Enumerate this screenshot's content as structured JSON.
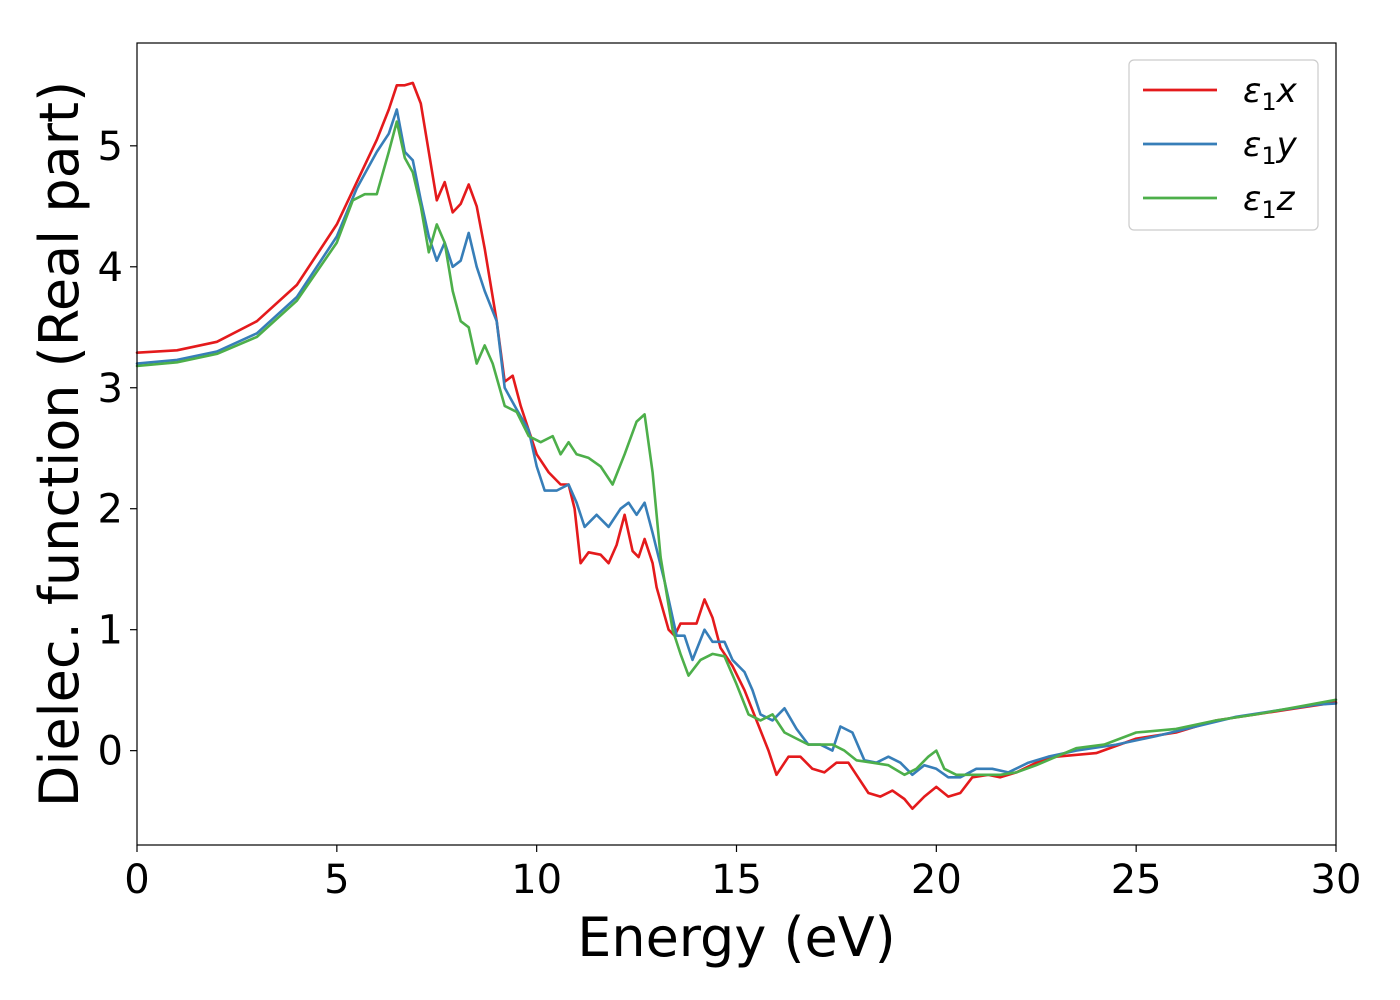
{
  "chart_data": {
    "type": "line",
    "xlabel": "Energy (eV)",
    "ylabel": "Dielec. function (Real part)",
    "xlim": [
      0,
      30
    ],
    "ylim": [
      -0.78,
      5.85
    ],
    "xticks": [
      0,
      5,
      10,
      15,
      20,
      25,
      30
    ],
    "yticks": [
      0,
      1,
      2,
      3,
      4,
      5
    ],
    "grid": false,
    "legend_position": "top-right",
    "series": [
      {
        "name": "ε1x",
        "legend": {
          "base": "ε",
          "sub": "1",
          "var": "x"
        },
        "color": "#e41a1c",
        "points": [
          [
            0,
            3.29
          ],
          [
            1,
            3.31
          ],
          [
            2,
            3.38
          ],
          [
            3,
            3.55
          ],
          [
            4,
            3.85
          ],
          [
            5,
            4.35
          ],
          [
            5.5,
            4.7
          ],
          [
            6,
            5.05
          ],
          [
            6.3,
            5.3
          ],
          [
            6.5,
            5.5
          ],
          [
            6.7,
            5.5
          ],
          [
            6.9,
            5.52
          ],
          [
            7.1,
            5.35
          ],
          [
            7.3,
            4.95
          ],
          [
            7.5,
            4.55
          ],
          [
            7.7,
            4.7
          ],
          [
            7.9,
            4.45
          ],
          [
            8.1,
            4.52
          ],
          [
            8.3,
            4.68
          ],
          [
            8.5,
            4.5
          ],
          [
            8.7,
            4.15
          ],
          [
            9,
            3.55
          ],
          [
            9.2,
            3.05
          ],
          [
            9.4,
            3.1
          ],
          [
            9.6,
            2.85
          ],
          [
            9.8,
            2.65
          ],
          [
            10,
            2.45
          ],
          [
            10.3,
            2.3
          ],
          [
            10.6,
            2.2
          ],
          [
            10.8,
            2.2
          ],
          [
            10.95,
            2.0
          ],
          [
            11.1,
            1.55
          ],
          [
            11.3,
            1.64
          ],
          [
            11.6,
            1.62
          ],
          [
            11.8,
            1.55
          ],
          [
            12.0,
            1.7
          ],
          [
            12.2,
            1.95
          ],
          [
            12.4,
            1.65
          ],
          [
            12.55,
            1.6
          ],
          [
            12.7,
            1.75
          ],
          [
            12.9,
            1.55
          ],
          [
            13.0,
            1.35
          ],
          [
            13.3,
            1.0
          ],
          [
            13.45,
            0.95
          ],
          [
            13.6,
            1.05
          ],
          [
            13.8,
            1.05
          ],
          [
            14.0,
            1.05
          ],
          [
            14.2,
            1.25
          ],
          [
            14.4,
            1.1
          ],
          [
            14.6,
            0.85
          ],
          [
            14.9,
            0.7
          ],
          [
            15.2,
            0.5
          ],
          [
            15.5,
            0.25
          ],
          [
            15.8,
            0.0
          ],
          [
            16.0,
            -0.2
          ],
          [
            16.3,
            -0.05
          ],
          [
            16.6,
            -0.05
          ],
          [
            16.9,
            -0.15
          ],
          [
            17.2,
            -0.18
          ],
          [
            17.5,
            -0.1
          ],
          [
            17.8,
            -0.1
          ],
          [
            18.0,
            -0.2
          ],
          [
            18.3,
            -0.35
          ],
          [
            18.6,
            -0.38
          ],
          [
            18.9,
            -0.33
          ],
          [
            19.2,
            -0.4
          ],
          [
            19.4,
            -0.48
          ],
          [
            19.7,
            -0.38
          ],
          [
            20.0,
            -0.3
          ],
          [
            20.3,
            -0.38
          ],
          [
            20.6,
            -0.35
          ],
          [
            20.9,
            -0.22
          ],
          [
            21.3,
            -0.2
          ],
          [
            21.6,
            -0.22
          ],
          [
            22.0,
            -0.18
          ],
          [
            22.5,
            -0.1
          ],
          [
            23,
            -0.05
          ],
          [
            24,
            -0.02
          ],
          [
            25,
            0.1
          ],
          [
            26,
            0.15
          ],
          [
            27,
            0.25
          ],
          [
            28,
            0.3
          ],
          [
            29,
            0.35
          ],
          [
            30,
            0.4
          ]
        ]
      },
      {
        "name": "ε1y",
        "legend": {
          "base": "ε",
          "sub": "1",
          "var": "y"
        },
        "color": "#377eb8",
        "points": [
          [
            0,
            3.2
          ],
          [
            1,
            3.23
          ],
          [
            2,
            3.3
          ],
          [
            3,
            3.45
          ],
          [
            4,
            3.75
          ],
          [
            5,
            4.25
          ],
          [
            5.5,
            4.65
          ],
          [
            6,
            4.95
          ],
          [
            6.3,
            5.1
          ],
          [
            6.5,
            5.3
          ],
          [
            6.7,
            4.95
          ],
          [
            6.9,
            4.88
          ],
          [
            7.1,
            4.55
          ],
          [
            7.3,
            4.25
          ],
          [
            7.5,
            4.05
          ],
          [
            7.7,
            4.2
          ],
          [
            7.9,
            4.0
          ],
          [
            8.1,
            4.05
          ],
          [
            8.3,
            4.28
          ],
          [
            8.5,
            4.0
          ],
          [
            8.7,
            3.8
          ],
          [
            9.0,
            3.55
          ],
          [
            9.2,
            3.0
          ],
          [
            9.5,
            2.82
          ],
          [
            9.8,
            2.65
          ],
          [
            10.0,
            2.35
          ],
          [
            10.2,
            2.15
          ],
          [
            10.5,
            2.15
          ],
          [
            10.8,
            2.2
          ],
          [
            11.0,
            2.05
          ],
          [
            11.2,
            1.85
          ],
          [
            11.5,
            1.95
          ],
          [
            11.8,
            1.85
          ],
          [
            12.1,
            2.0
          ],
          [
            12.3,
            2.05
          ],
          [
            12.5,
            1.95
          ],
          [
            12.7,
            2.05
          ],
          [
            12.9,
            1.8
          ],
          [
            13.2,
            1.4
          ],
          [
            13.5,
            0.95
          ],
          [
            13.7,
            0.95
          ],
          [
            13.9,
            0.75
          ],
          [
            14.2,
            1.0
          ],
          [
            14.4,
            0.9
          ],
          [
            14.7,
            0.9
          ],
          [
            14.9,
            0.75
          ],
          [
            15.2,
            0.65
          ],
          [
            15.4,
            0.5
          ],
          [
            15.6,
            0.3
          ],
          [
            15.9,
            0.25
          ],
          [
            16.2,
            0.35
          ],
          [
            16.5,
            0.18
          ],
          [
            16.8,
            0.05
          ],
          [
            17.1,
            0.05
          ],
          [
            17.4,
            0.0
          ],
          [
            17.6,
            0.2
          ],
          [
            17.9,
            0.15
          ],
          [
            18.2,
            -0.08
          ],
          [
            18.5,
            -0.1
          ],
          [
            18.8,
            -0.05
          ],
          [
            19.1,
            -0.1
          ],
          [
            19.4,
            -0.2
          ],
          [
            19.7,
            -0.12
          ],
          [
            20.0,
            -0.15
          ],
          [
            20.3,
            -0.22
          ],
          [
            20.6,
            -0.22
          ],
          [
            21.0,
            -0.15
          ],
          [
            21.4,
            -0.15
          ],
          [
            21.8,
            -0.18
          ],
          [
            22.3,
            -0.1
          ],
          [
            22.8,
            -0.05
          ],
          [
            23.5,
            0.0
          ],
          [
            24.5,
            0.05
          ],
          [
            25.5,
            0.12
          ],
          [
            26.5,
            0.2
          ],
          [
            27.5,
            0.28
          ],
          [
            28.5,
            0.33
          ],
          [
            29.5,
            0.38
          ],
          [
            30,
            0.39
          ]
        ]
      },
      {
        "name": "ε1z",
        "legend": {
          "base": "ε",
          "sub": "1",
          "var": "z"
        },
        "color": "#4daf4a",
        "points": [
          [
            0,
            3.18
          ],
          [
            1,
            3.21
          ],
          [
            2,
            3.28
          ],
          [
            3,
            3.42
          ],
          [
            4,
            3.72
          ],
          [
            5,
            4.2
          ],
          [
            5.4,
            4.55
          ],
          [
            5.7,
            4.6
          ],
          [
            6.0,
            4.6
          ],
          [
            6.3,
            4.95
          ],
          [
            6.5,
            5.2
          ],
          [
            6.7,
            4.9
          ],
          [
            6.9,
            4.78
          ],
          [
            7.1,
            4.5
          ],
          [
            7.3,
            4.12
          ],
          [
            7.5,
            4.35
          ],
          [
            7.7,
            4.2
          ],
          [
            7.9,
            3.8
          ],
          [
            8.1,
            3.55
          ],
          [
            8.3,
            3.5
          ],
          [
            8.5,
            3.2
          ],
          [
            8.7,
            3.35
          ],
          [
            8.9,
            3.2
          ],
          [
            9.2,
            2.85
          ],
          [
            9.5,
            2.8
          ],
          [
            9.8,
            2.6
          ],
          [
            10.1,
            2.55
          ],
          [
            10.4,
            2.6
          ],
          [
            10.6,
            2.45
          ],
          [
            10.8,
            2.55
          ],
          [
            11.0,
            2.45
          ],
          [
            11.3,
            2.42
          ],
          [
            11.6,
            2.35
          ],
          [
            11.9,
            2.2
          ],
          [
            12.2,
            2.45
          ],
          [
            12.5,
            2.72
          ],
          [
            12.7,
            2.78
          ],
          [
            12.9,
            2.3
          ],
          [
            13.1,
            1.6
          ],
          [
            13.4,
            1.0
          ],
          [
            13.6,
            0.8
          ],
          [
            13.8,
            0.62
          ],
          [
            14.1,
            0.75
          ],
          [
            14.4,
            0.8
          ],
          [
            14.7,
            0.78
          ],
          [
            15.0,
            0.55
          ],
          [
            15.3,
            0.3
          ],
          [
            15.6,
            0.25
          ],
          [
            15.9,
            0.3
          ],
          [
            16.2,
            0.15
          ],
          [
            16.5,
            0.1
          ],
          [
            16.8,
            0.05
          ],
          [
            17.1,
            0.05
          ],
          [
            17.4,
            0.05
          ],
          [
            17.7,
            0.0
          ],
          [
            18.0,
            -0.08
          ],
          [
            18.4,
            -0.1
          ],
          [
            18.8,
            -0.12
          ],
          [
            19.2,
            -0.2
          ],
          [
            19.5,
            -0.15
          ],
          [
            19.8,
            -0.05
          ],
          [
            20.0,
            0.0
          ],
          [
            20.2,
            -0.15
          ],
          [
            20.5,
            -0.2
          ],
          [
            20.8,
            -0.2
          ],
          [
            21.2,
            -0.2
          ],
          [
            21.6,
            -0.2
          ],
          [
            22.0,
            -0.18
          ],
          [
            22.5,
            -0.12
          ],
          [
            23.0,
            -0.05
          ],
          [
            23.5,
            0.02
          ],
          [
            24.2,
            0.05
          ],
          [
            25.0,
            0.15
          ],
          [
            26.0,
            0.18
          ],
          [
            27.0,
            0.25
          ],
          [
            28.0,
            0.3
          ],
          [
            29.0,
            0.36
          ],
          [
            30,
            0.42
          ]
        ]
      }
    ]
  }
}
